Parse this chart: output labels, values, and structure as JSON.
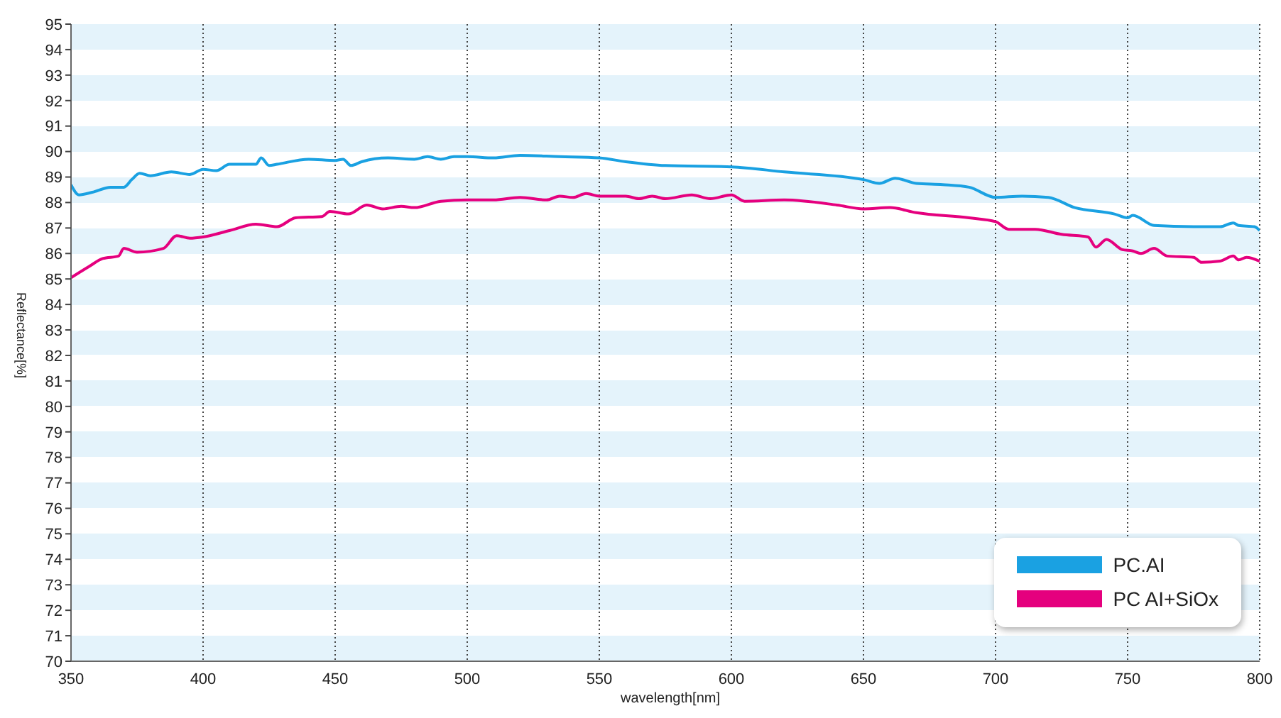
{
  "chart_data": {
    "type": "line",
    "xlabel": "wavelength[nm]",
    "ylabel": "Reflectance[%]",
    "xlim": [
      350,
      800
    ],
    "xticks": [
      350,
      400,
      450,
      500,
      550,
      600,
      650,
      700,
      750,
      800
    ],
    "ylim": [
      70,
      95
    ],
    "yticks": [
      70,
      71,
      72,
      73,
      74,
      75,
      76,
      77,
      78,
      79,
      80,
      81,
      82,
      83,
      84,
      85,
      86,
      87,
      88,
      89,
      90,
      91,
      92,
      93,
      94,
      95
    ],
    "grid": "x",
    "legend": "bottom right",
    "marker": "none",
    "line_style": "solid",
    "series": [
      {
        "name": "PC.AI",
        "color": "#1aa1e2",
        "x": [
          350,
          353,
          358,
          365,
          370,
          373,
          376,
          380,
          388,
          395,
          400,
          405,
          410,
          420,
          422,
          425,
          428,
          440,
          450,
          453,
          456,
          460,
          470,
          480,
          485,
          490,
          495,
          500,
          510,
          520,
          535,
          550,
          560,
          575,
          600,
          620,
          650,
          656,
          662,
          670,
          680,
          690,
          700,
          710,
          720,
          730,
          745,
          750,
          752,
          760,
          775,
          785,
          790,
          792,
          798,
          800
        ],
        "values": [
          88.7,
          88.3,
          88.4,
          88.6,
          88.6,
          88.9,
          89.15,
          89.05,
          89.2,
          89.1,
          89.3,
          89.25,
          89.5,
          89.5,
          89.75,
          89.45,
          89.5,
          89.7,
          89.65,
          89.7,
          89.45,
          89.6,
          89.75,
          89.7,
          89.8,
          89.7,
          89.8,
          89.8,
          89.75,
          89.85,
          89.8,
          89.75,
          89.6,
          89.45,
          89.4,
          89.2,
          88.9,
          88.75,
          88.95,
          88.75,
          88.7,
          88.6,
          88.2,
          88.25,
          88.2,
          87.8,
          87.55,
          87.4,
          87.5,
          87.1,
          87.05,
          87.05,
          87.2,
          87.1,
          87.05,
          86.9
        ]
      },
      {
        "name": "PC AI+SiOx",
        "color": "#e5007e",
        "x": [
          350,
          357,
          362,
          368,
          370,
          375,
          385,
          390,
          395,
          400,
          410,
          420,
          428,
          435,
          445,
          448,
          455,
          462,
          468,
          475,
          480,
          490,
          500,
          510,
          520,
          530,
          535,
          540,
          545,
          550,
          560,
          565,
          570,
          575,
          585,
          592,
          600,
          605,
          620,
          640,
          650,
          660,
          670,
          690,
          700,
          705,
          715,
          725,
          735,
          738,
          742,
          748,
          752,
          755,
          760,
          765,
          775,
          778,
          785,
          790,
          792,
          795,
          800
        ],
        "values": [
          85.05,
          85.5,
          85.8,
          85.9,
          86.2,
          86.05,
          86.2,
          86.7,
          86.6,
          86.65,
          86.9,
          87.15,
          87.05,
          87.4,
          87.45,
          87.65,
          87.55,
          87.9,
          87.75,
          87.85,
          87.8,
          88.05,
          88.1,
          88.1,
          88.2,
          88.1,
          88.25,
          88.2,
          88.35,
          88.25,
          88.25,
          88.15,
          88.25,
          88.15,
          88.3,
          88.15,
          88.3,
          88.05,
          88.1,
          87.9,
          87.75,
          87.8,
          87.6,
          87.4,
          87.25,
          86.95,
          86.95,
          86.75,
          86.65,
          86.25,
          86.55,
          86.15,
          86.1,
          86.0,
          86.2,
          85.9,
          85.85,
          85.65,
          85.7,
          85.9,
          85.75,
          85.85,
          85.7
        ]
      }
    ]
  }
}
